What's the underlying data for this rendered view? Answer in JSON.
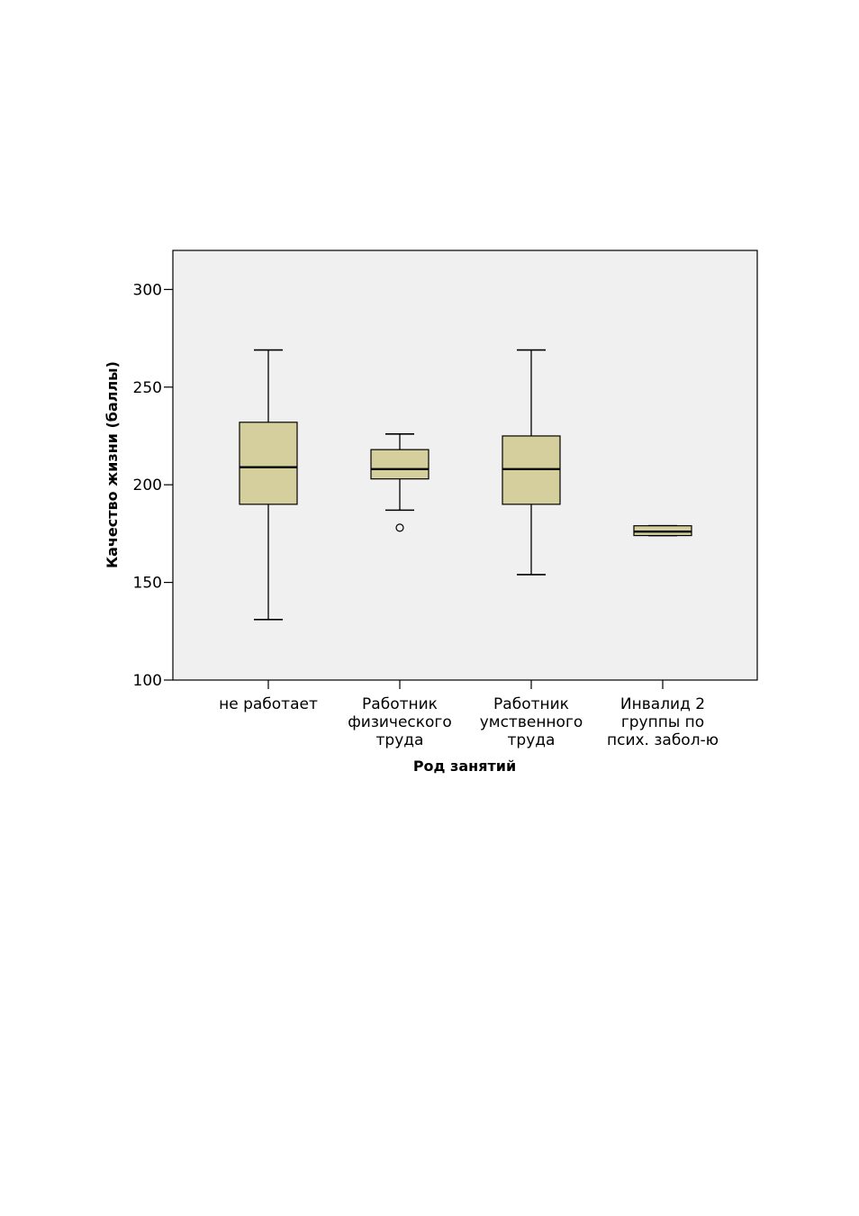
{
  "chart_data": {
    "type": "boxplot",
    "xlabel": "Род занятий",
    "ylabel": "Качество жизни (баллы)",
    "ylim": [
      100,
      320
    ],
    "yticks": [
      100,
      150,
      200,
      250,
      300
    ],
    "grid": false,
    "colors": {
      "plot_background": "#f0f0f0",
      "box_fill": "#d4cf9c",
      "line": "#000000"
    },
    "categories": [
      {
        "label_lines": [
          "не работает"
        ],
        "whisker_low": 131,
        "q1": 190,
        "median": 209,
        "q3": 232,
        "whisker_high": 269,
        "outliers": []
      },
      {
        "label_lines": [
          "Работник",
          "физического",
          "труда"
        ],
        "whisker_low": 187,
        "q1": 203,
        "median": 208,
        "q3": 218,
        "whisker_high": 226,
        "outliers": [
          178
        ]
      },
      {
        "label_lines": [
          "Работник",
          "умственного",
          "труда"
        ],
        "whisker_low": 154,
        "q1": 190,
        "median": 208,
        "q3": 225,
        "whisker_high": 269,
        "outliers": []
      },
      {
        "label_lines": [
          "Инвалид 2",
          "группы по",
          "псих. забол-ю"
        ],
        "whisker_low": 174,
        "q1": 174,
        "median": 176,
        "q3": 179,
        "whisker_high": 179,
        "outliers": []
      }
    ]
  }
}
